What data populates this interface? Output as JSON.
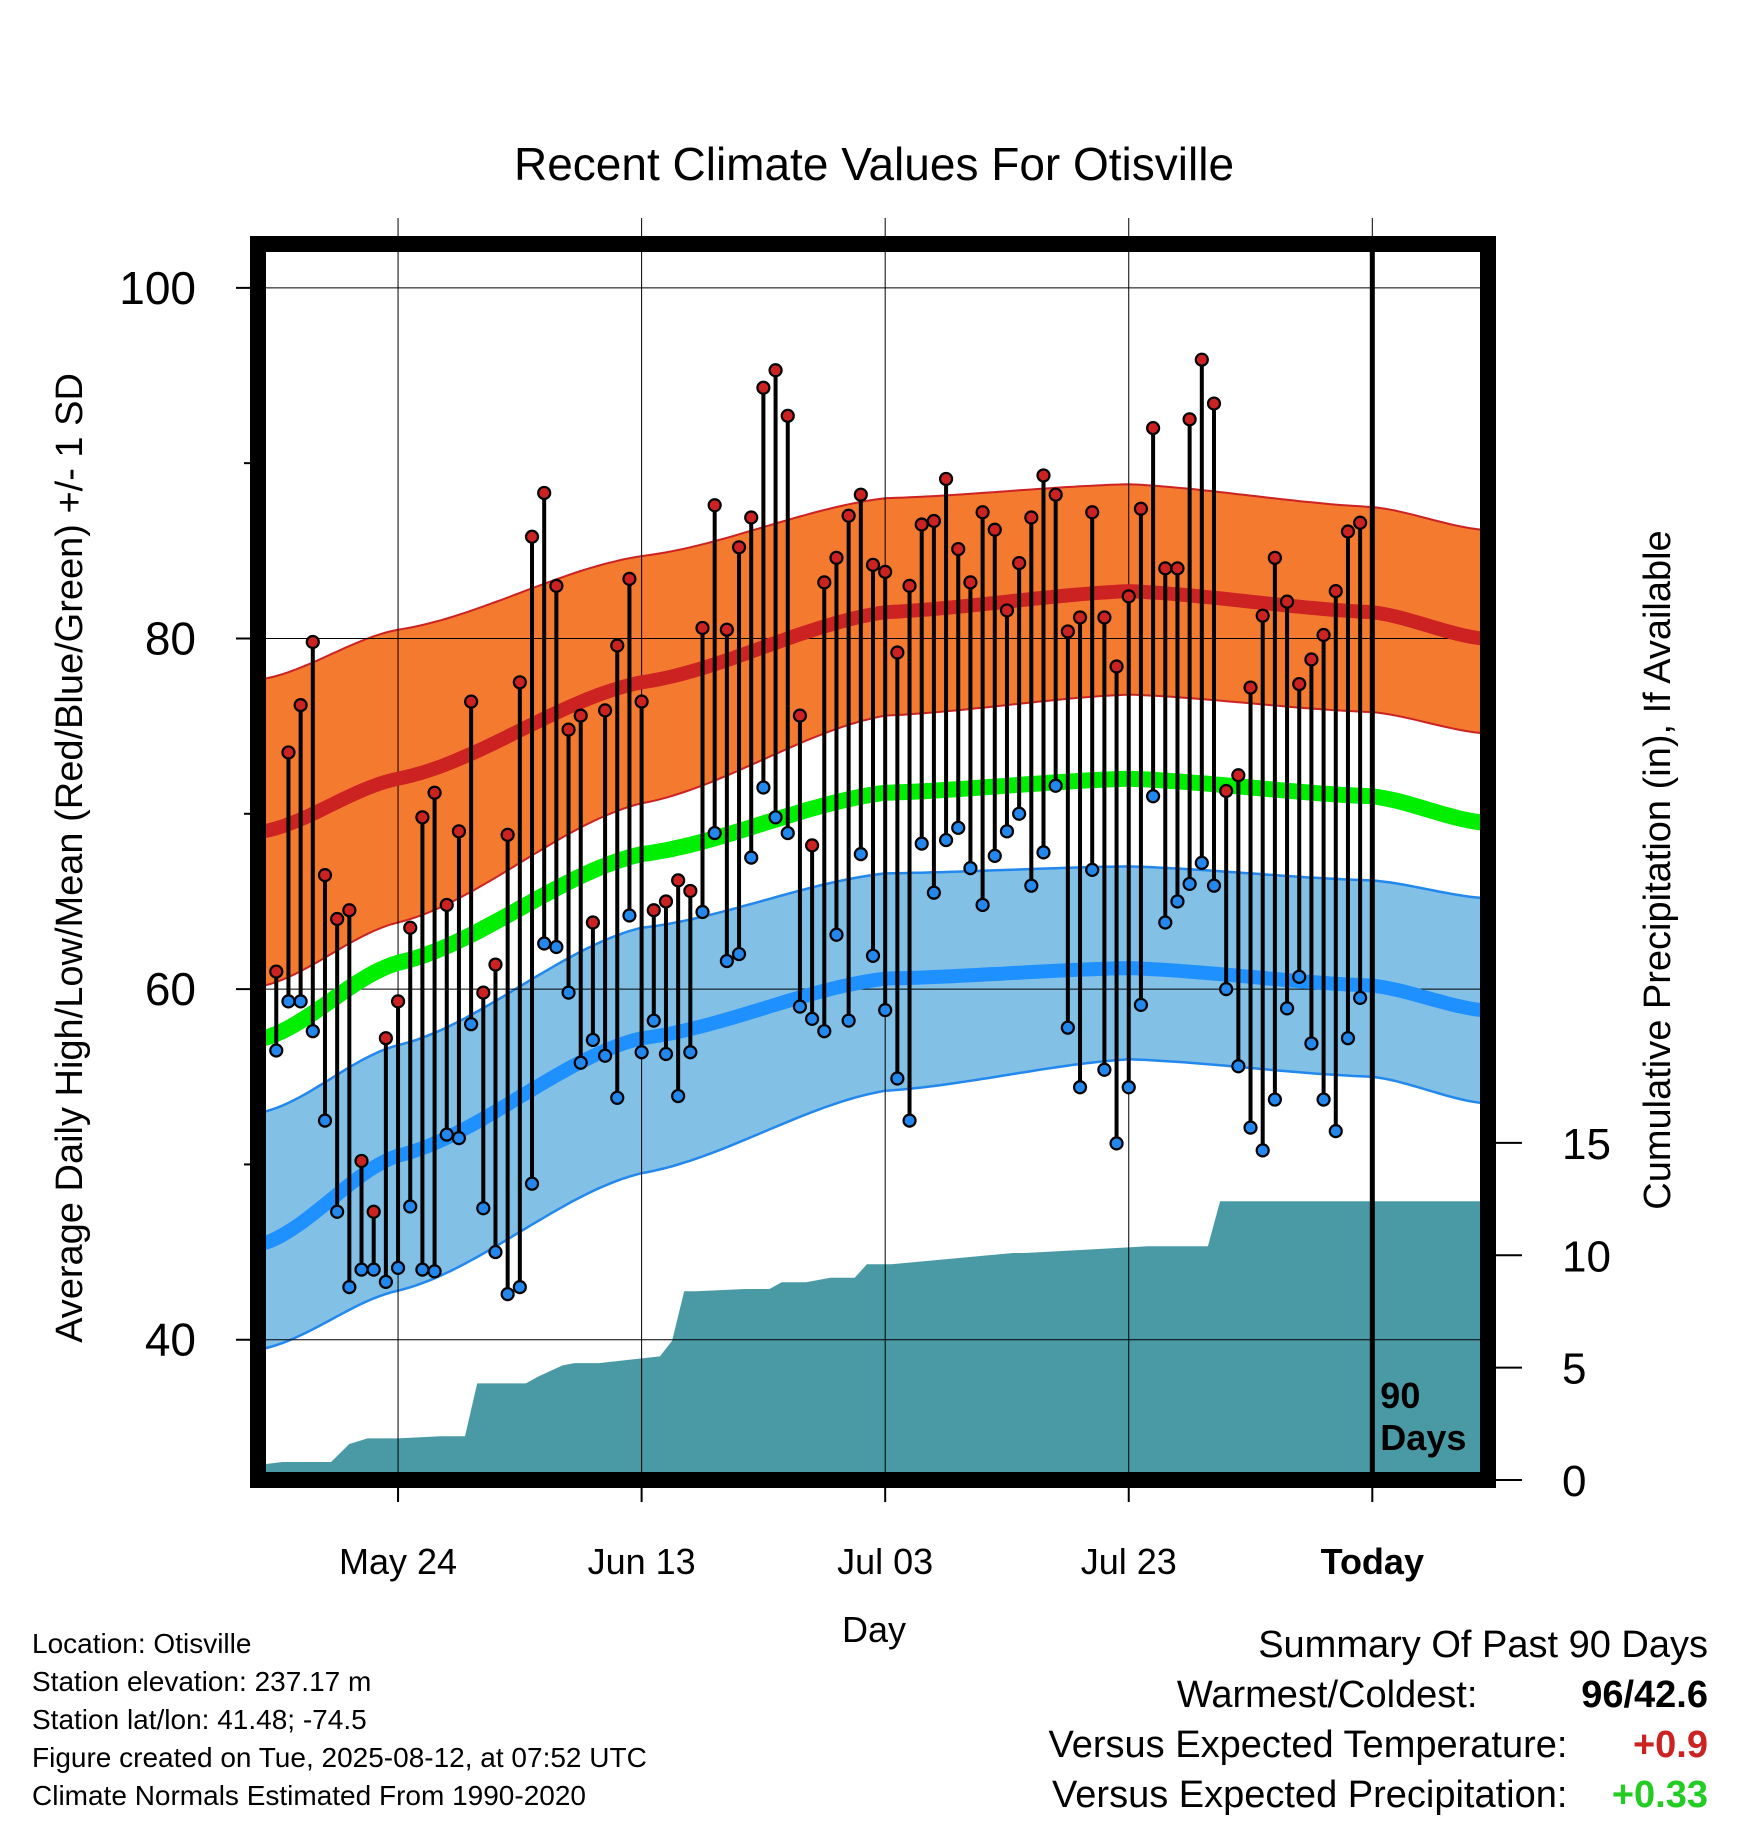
{
  "chart_data": {
    "type": "line",
    "title": "Recent Climate Values For Otisville",
    "xlabel": "Day",
    "ylabel_left": "Average Daily High/Low/Mean (Red/Blue/Green) +/- 1 SD",
    "ylabel_right": "Cumulative Precipitation (in), If Available",
    "ylim_left": [
      32,
      102.5
    ],
    "ylim_right": [
      0,
      55
    ],
    "left_ticks": [
      "40",
      "60",
      "80",
      "100"
    ],
    "right_ticks": [
      "0",
      "5",
      "10",
      "15"
    ],
    "x_ticks": [
      "May 24",
      "Jun 13",
      "Jul 03",
      "Jul 23",
      "Today"
    ],
    "x_tick_days": [
      -80,
      -60,
      -40,
      -20,
      0
    ],
    "x_range": [
      -91.5,
      9.5
    ],
    "today_label": "90\nDays",
    "grid": true,
    "normals": {
      "days": [
        -91,
        -80,
        -60,
        -40,
        -20,
        0,
        9
      ],
      "high_mean": [
        69,
        72,
        77.5,
        81.5,
        82.7,
        81.5,
        80
      ],
      "high_upper": [
        77.7,
        80.5,
        84.7,
        88,
        88.8,
        87.5,
        86.2
      ],
      "high_lower": [
        60.2,
        63.8,
        70.6,
        75.6,
        76.8,
        75.8,
        74.6
      ],
      "mean_mean": [
        57.2,
        61.5,
        67.7,
        71.2,
        72,
        71,
        69.5
      ],
      "low_mean": [
        45.5,
        50.5,
        57.2,
        60.6,
        61.2,
        60.2,
        58.8
      ],
      "low_upper": [
        53,
        56.8,
        63.5,
        66.6,
        67,
        66.2,
        65.2
      ],
      "low_lower": [
        39.5,
        42.8,
        49.5,
        54.2,
        56,
        55,
        53.5
      ]
    },
    "series": [
      {
        "name": "High",
        "color": "#cc2222",
        "days": [
          -90,
          -89,
          -88,
          -87,
          -86,
          -85,
          -84,
          -83,
          -82,
          -81,
          -80,
          -79,
          -78,
          -77,
          -76,
          -75,
          -74,
          -73,
          -72,
          -71,
          -70,
          -69,
          -68,
          -67,
          -66,
          -65,
          -64,
          -63,
          -62,
          -61,
          -60,
          -59,
          -58,
          -57,
          -56,
          -55,
          -54,
          -53,
          -52,
          -51,
          -50,
          -49,
          -48,
          -47,
          -46,
          -45,
          -44,
          -43,
          -42,
          -41,
          -40,
          -39,
          -38,
          -37,
          -36,
          -35,
          -34,
          -33,
          -32,
          -31,
          -30,
          -29,
          -28,
          -27,
          -26,
          -25,
          -24,
          -23,
          -22,
          -21,
          -20,
          -19,
          -18,
          -17,
          -16,
          -15,
          -14,
          -13,
          -12,
          -11,
          -10,
          -9,
          -8,
          -7,
          -6,
          -5,
          -4,
          -3,
          -2,
          -1
        ],
        "values": [
          61,
          73.5,
          76.2,
          79.8,
          66.5,
          64,
          64.5,
          50.2,
          47.3,
          57.2,
          59.3,
          63.5,
          69.8,
          71.2,
          64.8,
          69,
          76.4,
          59.8,
          61.4,
          68.8,
          77.5,
          85.8,
          88.3,
          83,
          74.8,
          75.6,
          63.8,
          75.9,
          79.6,
          83.4,
          76.4,
          64.5,
          65,
          66.2,
          65.6,
          80.6,
          87.6,
          80.5,
          85.2,
          86.9,
          94.3,
          95.3,
          92.7,
          75.6,
          68.2,
          83.2,
          84.6,
          87,
          88.2,
          84.2,
          83.8,
          79.2,
          83,
          86.5,
          86.7,
          89.1,
          85.1,
          83.2,
          87.2,
          86.2,
          81.6,
          84.3,
          86.9,
          89.3,
          88.2,
          80.4,
          81.2,
          87.2,
          81.2,
          78.4,
          82.4,
          87.4,
          92,
          84,
          84,
          92.5,
          95.9,
          93.4,
          71.3,
          72.2,
          77.2,
          81.3,
          84.6,
          82.1,
          77.4,
          78.8,
          80.2,
          82.7,
          86.1,
          86.6
        ]
      },
      {
        "name": "Low",
        "color": "#2288ee",
        "days": [
          -90,
          -89,
          -88,
          -87,
          -86,
          -85,
          -84,
          -83,
          -82,
          -81,
          -80,
          -79,
          -78,
          -77,
          -76,
          -75,
          -74,
          -73,
          -72,
          -71,
          -70,
          -69,
          -68,
          -67,
          -66,
          -65,
          -64,
          -63,
          -62,
          -61,
          -60,
          -59,
          -58,
          -57,
          -56,
          -55,
          -54,
          -53,
          -52,
          -51,
          -50,
          -49,
          -48,
          -47,
          -46,
          -45,
          -44,
          -43,
          -42,
          -41,
          -40,
          -39,
          -38,
          -37,
          -36,
          -35,
          -34,
          -33,
          -32,
          -31,
          -30,
          -29,
          -28,
          -27,
          -26,
          -25,
          -24,
          -23,
          -22,
          -21,
          -20,
          -19,
          -18,
          -17,
          -16,
          -15,
          -14,
          -13,
          -12,
          -11,
          -10,
          -9,
          -8,
          -7,
          -6,
          -5,
          -4,
          -3,
          -2,
          -1
        ],
        "values": [
          56.5,
          59.3,
          59.3,
          57.6,
          52.5,
          47.3,
          43,
          44,
          44,
          43.3,
          44.1,
          47.6,
          44,
          43.9,
          51.7,
          51.5,
          58,
          47.5,
          45,
          42.6,
          43,
          48.9,
          62.6,
          62.4,
          59.8,
          55.8,
          57.1,
          56.2,
          53.8,
          64.2,
          56.4,
          58.2,
          56.3,
          53.9,
          56.4,
          64.4,
          68.9,
          61.6,
          62,
          67.5,
          71.5,
          69.8,
          68.9,
          59,
          58.3,
          57.6,
          63.1,
          58.2,
          67.7,
          61.9,
          58.8,
          54.9,
          52.5,
          68.3,
          65.5,
          68.5,
          69.2,
          66.9,
          64.8,
          67.6,
          69,
          70,
          65.9,
          67.8,
          71.6,
          57.8,
          54.4,
          66.8,
          55.4,
          51.2,
          54.4,
          59.1,
          71,
          63.8,
          65,
          66,
          67.2,
          65.9,
          60,
          55.6,
          52.1,
          50.8,
          53.7,
          58.9,
          60.7,
          56.9,
          53.7,
          51.9,
          57.2,
          59.5
        ]
      }
    ],
    "precipitation": {
      "name": "Cumulative Precipitation",
      "color": "#4a9aa5",
      "days": [
        -91,
        -89.5,
        -85.5,
        -84,
        -82.5,
        -80,
        -76.5,
        -74.5,
        -73.5,
        -69.5,
        -68.5,
        -66.5,
        -65.5,
        -63.5,
        -58.5,
        -57.5,
        -56.5,
        -55.5,
        -51.5,
        -49.5,
        -48.5,
        -46.5,
        -44.5,
        -42.5,
        -41.5,
        -39.5,
        -29.5,
        -28.5,
        -18.5,
        -17.5,
        -13.5,
        -12.5,
        9
      ],
      "values": [
        0.7,
        0.8,
        0.8,
        1.6,
        1.85,
        1.85,
        1.95,
        1.95,
        4.3,
        4.3,
        4.6,
        5.1,
        5.2,
        5.2,
        5.5,
        6.2,
        8.4,
        8.4,
        8.5,
        8.5,
        8.8,
        8.8,
        9,
        9,
        9.6,
        9.6,
        10.1,
        10.1,
        10.4,
        10.4,
        10.4,
        12.4,
        12.4
      ]
    }
  },
  "meta": {
    "location": "Location: Otisville",
    "elevation": "Station elevation: 237.17 m",
    "latlon": "Station lat/lon: 41.48; -74.5",
    "created": "Figure created on Tue, 2025-08-12, at 07:52 UTC",
    "normals": "Climate Normals Estimated From 1990-2020"
  },
  "summary": {
    "title": "Summary Of Past 90 Days",
    "warm_cold_label": "Warmest/Coldest:",
    "warm_cold_value": "96/42.6",
    "temp_label": "Versus Expected Temperature:",
    "temp_value": "+0.9",
    "temp_color": "#cc2222",
    "precip_label": "Versus Expected Precipitation:",
    "precip_value": "+0.33",
    "precip_color": "#22cc22"
  }
}
